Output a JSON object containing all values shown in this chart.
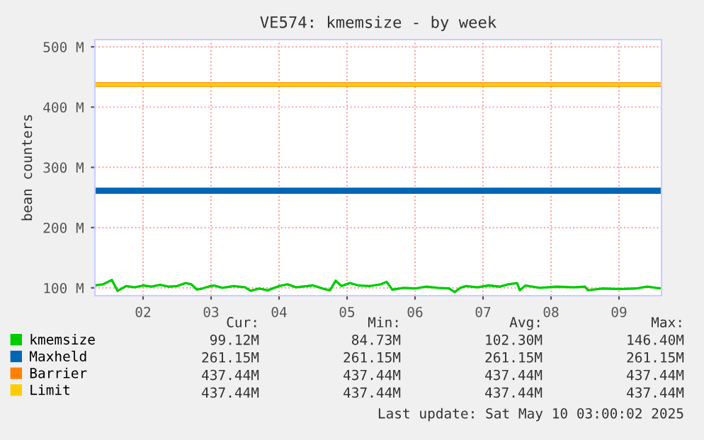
{
  "chart_data": {
    "type": "line",
    "title": "VE574: kmemsize - by week",
    "ylabel": "bean counters",
    "x": [
      "2025-05-01T19:00",
      "2025-05-01T22:00",
      "2025-05-02T01:00",
      "2025-05-02T03:00",
      "2025-05-02T06:00",
      "2025-05-02T09:00",
      "2025-05-02T12:00",
      "2025-05-02T15:00",
      "2025-05-02T18:00",
      "2025-05-02T21:00",
      "2025-05-03T00:00",
      "2025-05-03T03:00",
      "2025-05-03T05:00",
      "2025-05-03T07:00",
      "2025-05-03T09:00",
      "2025-05-03T11:00",
      "2025-05-03T13:00",
      "2025-05-03T16:00",
      "2025-05-03T20:00",
      "2025-05-04T00:00",
      "2025-05-04T02:00",
      "2025-05-04T05:00",
      "2025-05-04T08:00",
      "2025-05-04T12:00",
      "2025-05-04T15:00",
      "2025-05-04T18:00",
      "2025-05-05T00:00",
      "2025-05-05T04:00",
      "2025-05-05T06:00",
      "2025-05-05T08:00",
      "2025-05-05T10:00",
      "2025-05-05T13:00",
      "2025-05-05T16:00",
      "2025-05-05T20:00",
      "2025-05-06T00:00",
      "2025-05-06T02:00",
      "2025-05-06T04:00",
      "2025-05-06T08:00",
      "2025-05-06T12:00",
      "2025-05-06T16:00",
      "2025-05-06T20:00",
      "2025-05-07T00:00",
      "2025-05-07T02:00",
      "2025-05-07T04:00",
      "2025-05-07T06:00",
      "2025-05-07T10:00",
      "2025-05-07T14:00",
      "2025-05-07T18:00",
      "2025-05-07T21:00",
      "2025-05-08T00:00",
      "2025-05-08T01:00",
      "2025-05-08T03:00",
      "2025-05-08T08:00",
      "2025-05-08T14:00",
      "2025-05-08T20:00",
      "2025-05-09T00:00",
      "2025-05-09T01:00",
      "2025-05-09T06:00",
      "2025-05-09T12:00",
      "2025-05-09T18:00",
      "2025-05-09T22:00",
      "2025-05-10T01:00",
      "2025-05-10T03:00"
    ],
    "series": [
      {
        "name": "kmemsize",
        "color": "#00cc00",
        "values": [
          104,
          106,
          113,
          95,
          103,
          101,
          104,
          102,
          105,
          102,
          103,
          108,
          106,
          97,
          99,
          102,
          104,
          100,
          103,
          101,
          95,
          99,
          96,
          103,
          106,
          101,
          104,
          98,
          96,
          112,
          103,
          108,
          104,
          103,
          106,
          110,
          97,
          100,
          99,
          102,
          100,
          99,
          93,
          100,
          103,
          101,
          104,
          102,
          106,
          108,
          96,
          104,
          100,
          102,
          101,
          102,
          96,
          99,
          98,
          99,
          102,
          100,
          99
        ]
      },
      {
        "name": "Maxheld",
        "color": "#0066b3",
        "values": [
          261.15,
          261.15,
          261.15,
          261.15,
          261.15,
          261.15,
          261.15,
          261.15,
          261.15,
          261.15,
          261.15,
          261.15,
          261.15,
          261.15,
          261.15,
          261.15,
          261.15,
          261.15,
          261.15,
          261.15,
          261.15,
          261.15,
          261.15,
          261.15,
          261.15,
          261.15,
          261.15,
          261.15,
          261.15,
          261.15,
          261.15,
          261.15,
          261.15,
          261.15,
          261.15,
          261.15,
          261.15,
          261.15,
          261.15,
          261.15,
          261.15,
          261.15,
          261.15,
          261.15,
          261.15,
          261.15,
          261.15,
          261.15,
          261.15,
          261.15,
          261.15,
          261.15,
          261.15,
          261.15,
          261.15,
          261.15,
          261.15,
          261.15,
          261.15,
          261.15,
          261.15,
          261.15,
          261.15
        ]
      },
      {
        "name": "Barrier",
        "color": "#ff8000",
        "values": [
          437.44,
          437.44,
          437.44,
          437.44,
          437.44,
          437.44,
          437.44,
          437.44,
          437.44,
          437.44,
          437.44,
          437.44,
          437.44,
          437.44,
          437.44,
          437.44,
          437.44,
          437.44,
          437.44,
          437.44,
          437.44,
          437.44,
          437.44,
          437.44,
          437.44,
          437.44,
          437.44,
          437.44,
          437.44,
          437.44,
          437.44,
          437.44,
          437.44,
          437.44,
          437.44,
          437.44,
          437.44,
          437.44,
          437.44,
          437.44,
          437.44,
          437.44,
          437.44,
          437.44,
          437.44,
          437.44,
          437.44,
          437.44,
          437.44,
          437.44,
          437.44,
          437.44,
          437.44,
          437.44,
          437.44,
          437.44,
          437.44,
          437.44,
          437.44,
          437.44,
          437.44,
          437.44,
          437.44
        ]
      },
      {
        "name": "Limit",
        "color": "#ffcc00",
        "values": [
          437.44,
          437.44,
          437.44,
          437.44,
          437.44,
          437.44,
          437.44,
          437.44,
          437.44,
          437.44,
          437.44,
          437.44,
          437.44,
          437.44,
          437.44,
          437.44,
          437.44,
          437.44,
          437.44,
          437.44,
          437.44,
          437.44,
          437.44,
          437.44,
          437.44,
          437.44,
          437.44,
          437.44,
          437.44,
          437.44,
          437.44,
          437.44,
          437.44,
          437.44,
          437.44,
          437.44,
          437.44,
          437.44,
          437.44,
          437.44,
          437.44,
          437.44,
          437.44,
          437.44,
          437.44,
          437.44,
          437.44,
          437.44,
          437.44,
          437.44,
          437.44,
          437.44,
          437.44,
          437.44,
          437.44,
          437.44,
          437.44,
          437.44,
          437.44,
          437.44,
          437.44,
          437.44,
          437.44
        ]
      }
    ],
    "xlim": [
      "2025-05-01T19:00",
      "2025-05-10T03:00"
    ],
    "xticks": [
      {
        "value": "2025-05-02T12:00",
        "label": "02"
      },
      {
        "value": "2025-05-03T12:00",
        "label": "03"
      },
      {
        "value": "2025-05-04T12:00",
        "label": "04"
      },
      {
        "value": "2025-05-05T12:00",
        "label": "05"
      },
      {
        "value": "2025-05-06T12:00",
        "label": "06"
      },
      {
        "value": "2025-05-07T12:00",
        "label": "07"
      },
      {
        "value": "2025-05-08T12:00",
        "label": "08"
      },
      {
        "value": "2025-05-09T12:00",
        "label": "09"
      }
    ],
    "ylim": [
      87,
      512
    ],
    "yticks": [
      {
        "value": 100,
        "label": "100 M"
      },
      {
        "value": 200,
        "label": "200 M"
      },
      {
        "value": 300,
        "label": "300 M"
      },
      {
        "value": 400,
        "label": "400 M"
      },
      {
        "value": 500,
        "label": "500 M"
      }
    ],
    "grid": true,
    "legend": "bottom left",
    "line_style": "solid",
    "annotations": [
      "Cur:",
      "Min:",
      "Avg:",
      "Max:",
      "99.12M",
      "84.73M",
      "102.30M",
      "146.40M",
      "261.15M",
      "261.15M",
      "261.15M",
      "261.15M",
      "437.44M",
      "437.44M",
      "437.44M",
      "437.44M",
      "437.44M",
      "437.44M",
      "437.44M",
      "437.44M",
      "Last update: Sat May 10 03:00:02 2025"
    ]
  }
}
